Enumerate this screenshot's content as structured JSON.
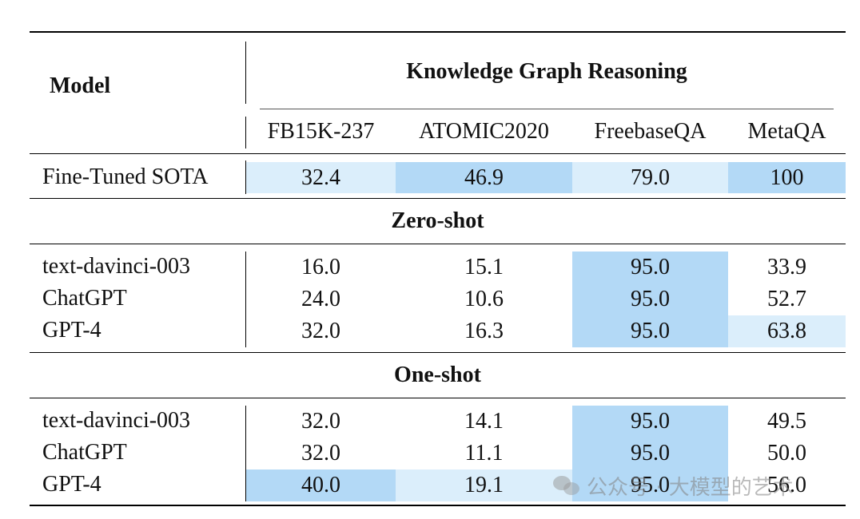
{
  "header": {
    "model_label": "Model",
    "group_title": "Knowledge Graph Reasoning",
    "columns": [
      "FB15K-237",
      "ATOMIC2020",
      "FreebaseQA",
      "MetaQA"
    ]
  },
  "finetuned": {
    "model": "Fine-Tuned SOTA",
    "values": [
      "32.4",
      "46.9",
      "79.0",
      "100"
    ]
  },
  "zero_shot": {
    "title": "Zero-shot",
    "rows": [
      {
        "model": "text-davinci-003",
        "values": [
          "16.0",
          "15.1",
          "95.0",
          "33.9"
        ]
      },
      {
        "model": "ChatGPT",
        "values": [
          "24.0",
          "10.6",
          "95.0",
          "52.7"
        ]
      },
      {
        "model": "GPT-4",
        "values": [
          "32.0",
          "16.3",
          "95.0",
          "63.8"
        ]
      }
    ]
  },
  "one_shot": {
    "title": "One-shot",
    "rows": [
      {
        "model": "text-davinci-003",
        "values": [
          "32.0",
          "14.1",
          "95.0",
          "49.5"
        ]
      },
      {
        "model": "ChatGPT",
        "values": [
          "32.0",
          "11.1",
          "95.0",
          "50.0"
        ]
      },
      {
        "model": "GPT-4",
        "values": [
          "40.0",
          "19.1",
          "95.0",
          "56.0"
        ]
      }
    ]
  },
  "highlight_colors": {
    "strong": "#b3d9f6",
    "light": "#dbeefb"
  },
  "watermark": {
    "icon": "wechat-icon",
    "text": "公众号 · 大模型的艺术"
  }
}
